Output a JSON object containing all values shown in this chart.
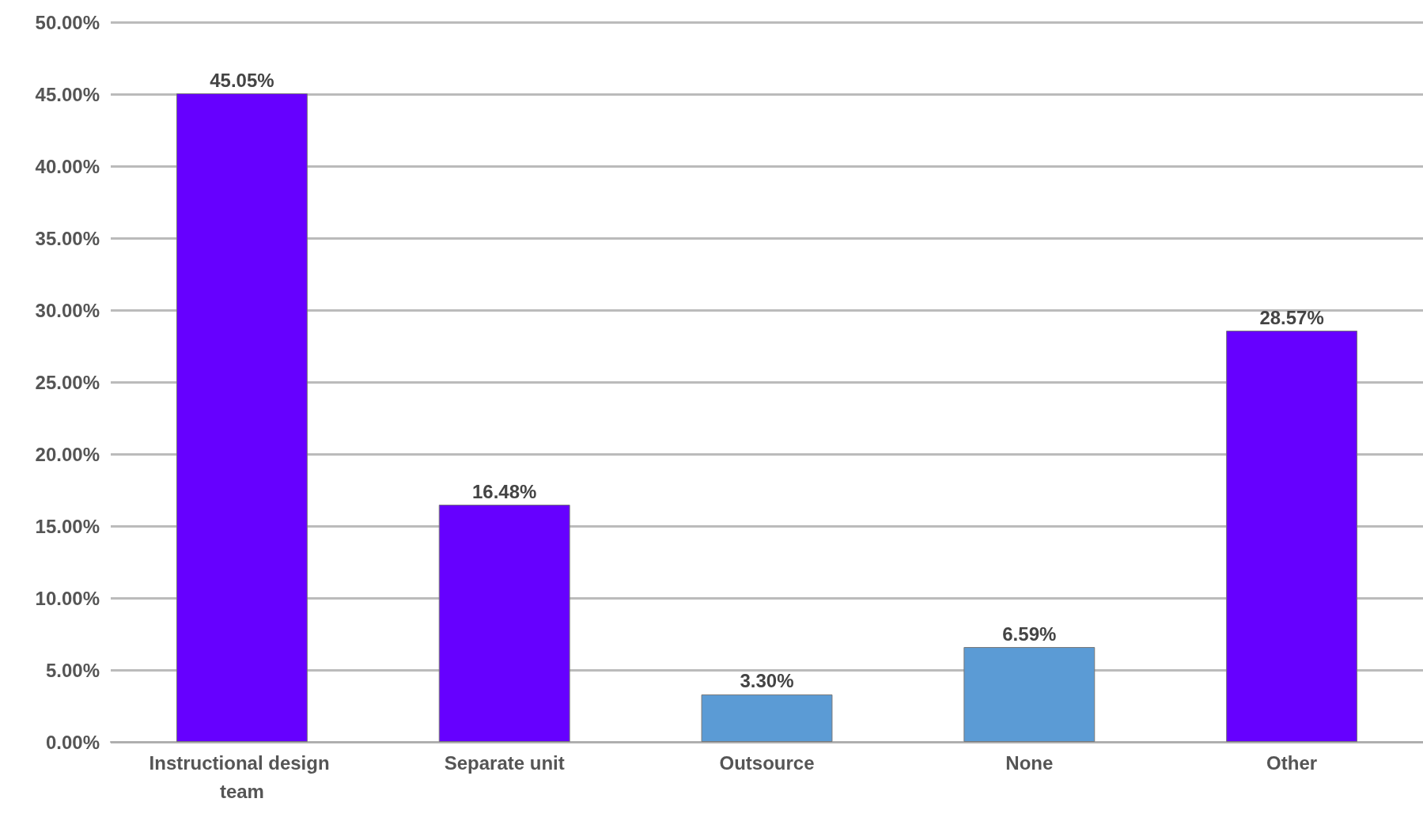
{
  "chart_data": {
    "type": "bar",
    "categories": [
      "Instructional design team",
      "Separate unit",
      "Outsource",
      "None",
      "Other"
    ],
    "values": [
      45.05,
      16.48,
      3.3,
      6.59,
      28.57
    ],
    "colors": [
      "#6600ff",
      "#6600ff",
      "#5b9bd5",
      "#5b9bd5",
      "#6600ff"
    ],
    "value_labels": [
      "45.05%",
      "16.48%",
      "3.30%",
      "6.59%",
      "28.57%"
    ],
    "ylim": [
      0,
      50
    ],
    "yticks": [
      {
        "value": 0,
        "label": "0.00%"
      },
      {
        "value": 5,
        "label": "5.00%"
      },
      {
        "value": 10,
        "label": "10.00%"
      },
      {
        "value": 15,
        "label": "15.00%"
      },
      {
        "value": 20,
        "label": "20.00%"
      },
      {
        "value": 25,
        "label": "25.00%"
      },
      {
        "value": 30,
        "label": "30.00%"
      },
      {
        "value": 35,
        "label": "35.00%"
      },
      {
        "value": 40,
        "label": "40.00%"
      },
      {
        "value": 45,
        "label": "45.00%"
      },
      {
        "value": 50,
        "label": "50.00%"
      }
    ],
    "grid": "y"
  }
}
